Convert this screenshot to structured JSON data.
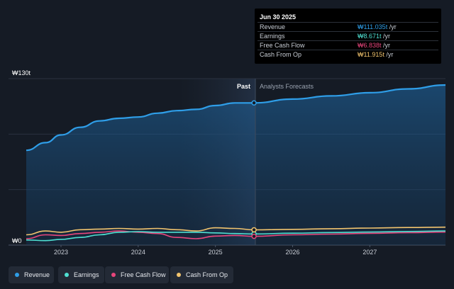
{
  "tooltip": {
    "date": "Jun 30 2025",
    "rows": [
      {
        "label": "Revenue",
        "value": "₩111.035t",
        "unit": " /yr",
        "color": "#2f9ee8"
      },
      {
        "label": "Earnings",
        "value": "₩8.671t",
        "unit": " /yr",
        "color": "#4fe0d2"
      },
      {
        "label": "Free Cash Flow",
        "value": "₩6.838t",
        "unit": " /yr",
        "color": "#e8467c"
      },
      {
        "label": "Cash From Op",
        "value": "₩11.915t",
        "unit": " /yr",
        "color": "#f2c46e"
      }
    ]
  },
  "region_labels": {
    "past": "Past",
    "forecast": "Analysts Forecasts"
  },
  "legend": [
    {
      "label": "Revenue",
      "color": "#2f9ee8"
    },
    {
      "label": "Earnings",
      "color": "#4fe0d2"
    },
    {
      "label": "Free Cash Flow",
      "color": "#e8467c"
    },
    {
      "label": "Cash From Op",
      "color": "#f2c46e"
    }
  ],
  "chart_data": {
    "type": "line",
    "y_tick_labels": [
      "₩0",
      "₩130t"
    ],
    "ylim": [
      0,
      130
    ],
    "x_tick_labels": [
      "2023",
      "2024",
      "2025",
      "2026",
      "2027"
    ],
    "xlim": [
      2022.55,
      2027.98
    ],
    "past_forecast_split": 2025.5,
    "series": [
      {
        "name": "Revenue",
        "color": "#2f9ee8",
        "x": [
          2022.55,
          2022.8,
          2023.0,
          2023.25,
          2023.5,
          2023.75,
          2024.0,
          2024.25,
          2024.5,
          2024.75,
          2025.0,
          2025.25,
          2025.5,
          2026.0,
          2026.5,
          2027.0,
          2027.5,
          2027.98
        ],
        "y": [
          74,
          80,
          86,
          92,
          97,
          99,
          100,
          103,
          105,
          106,
          109,
          111,
          111.035,
          114,
          116.5,
          119,
          122,
          125
        ]
      },
      {
        "name": "Earnings",
        "color": "#4fe0d2",
        "x": [
          2022.55,
          2022.8,
          2023.0,
          2023.25,
          2023.5,
          2023.75,
          2024.0,
          2024.25,
          2024.5,
          2024.75,
          2025.0,
          2025.25,
          2025.5,
          2026.0,
          2026.5,
          2027.0,
          2027.5,
          2027.98
        ],
        "y": [
          4,
          3.5,
          4.5,
          6,
          8,
          10,
          10.5,
          10,
          10,
          10,
          9.5,
          9,
          8.671,
          9.3,
          9.8,
          10.2,
          10.6,
          11
        ]
      },
      {
        "name": "Free Cash Flow",
        "color": "#e8467c",
        "x": [
          2022.55,
          2022.8,
          2023.0,
          2023.25,
          2023.5,
          2023.75,
          2024.0,
          2024.25,
          2024.5,
          2024.75,
          2025.0,
          2025.25,
          2025.5,
          2026.0,
          2026.5,
          2027.0,
          2027.5,
          2027.98
        ],
        "y": [
          5,
          8,
          7.5,
          9,
          10,
          11,
          10,
          9,
          6,
          5,
          7,
          7.5,
          6.838,
          8,
          8.6,
          9.2,
          9.7,
          10.2
        ]
      },
      {
        "name": "Cash From Op",
        "color": "#f2c46e",
        "x": [
          2022.55,
          2022.8,
          2023.0,
          2023.25,
          2023.5,
          2023.75,
          2024.0,
          2024.25,
          2024.5,
          2024.75,
          2025.0,
          2025.25,
          2025.5,
          2026.0,
          2026.5,
          2027.0,
          2027.5,
          2027.98
        ],
        "y": [
          8,
          11,
          10,
          12,
          12.5,
          13,
          12.5,
          13,
          12,
          11,
          13.5,
          13,
          11.915,
          12.3,
          12.8,
          13.3,
          13.7,
          14
        ]
      }
    ]
  }
}
